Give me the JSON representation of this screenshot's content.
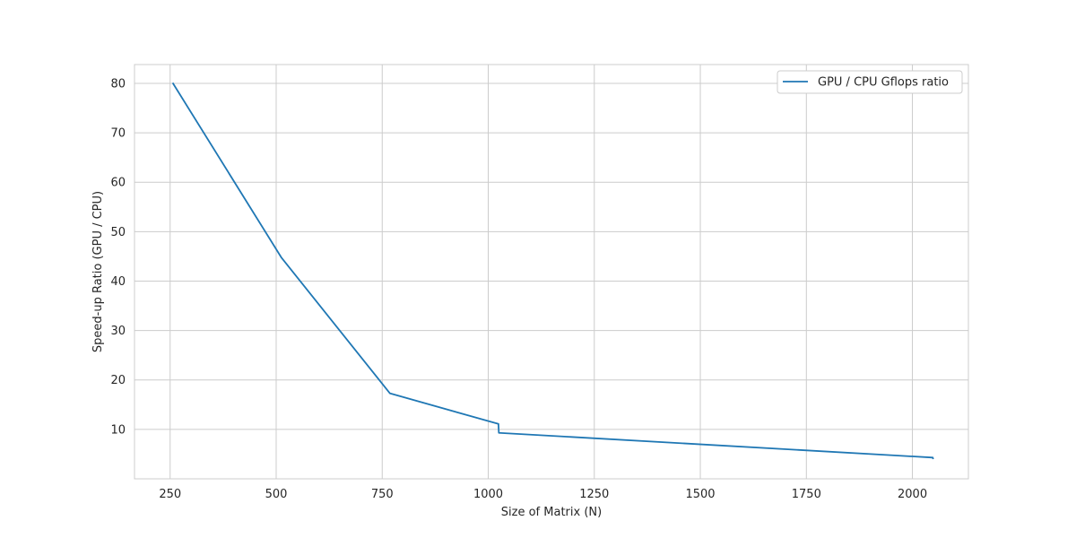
{
  "chart_data": {
    "type": "line",
    "title": "",
    "xlabel": "Size of Matrix (N)",
    "ylabel": "Speed-up Ratio (GPU / CPU)",
    "xlim": [
      166,
      2132
    ],
    "ylim": [
      0.0,
      83.8
    ],
    "xticks": [
      250,
      500,
      750,
      1000,
      1250,
      1500,
      1750,
      2000
    ],
    "yticks": [
      10,
      20,
      30,
      40,
      50,
      60,
      70,
      80
    ],
    "grid": true,
    "legend_position": "top-right",
    "series": [
      {
        "name": "GPU / CPU Gflops ratio",
        "color": "#1f77b4",
        "x": [
          256,
          512,
          768,
          1024,
          1025,
          2048,
          2049
        ],
        "y": [
          80.1,
          44.8,
          17.3,
          11.1,
          9.3,
          4.3,
          4.0
        ]
      }
    ]
  }
}
